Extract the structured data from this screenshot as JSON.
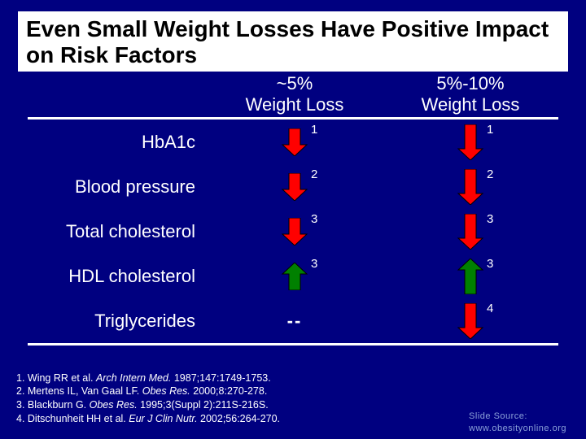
{
  "colors": {
    "background": "#000080",
    "title_bg": "#ffffff",
    "title_text": "#000000",
    "text": "#ffffff",
    "rule": "#ffffff",
    "source_text": "#8aa0d8",
    "arrow_down_fill": "#ff0000",
    "arrow_down_stroke": "#000000",
    "arrow_up_fill": "#008000",
    "arrow_up_stroke": "#000000"
  },
  "title": "Even Small Weight Losses Have Positive Impact on Risk Factors",
  "columns": {
    "col1": {
      "line1": "~5%",
      "line2": "Weight Loss"
    },
    "col2": {
      "line1": "5%-10%",
      "line2": "Weight Loss"
    }
  },
  "rows": [
    {
      "label": "HbA1c",
      "col1": {
        "type": "arrow",
        "direction": "down",
        "length": 34,
        "ref": "1"
      },
      "col2": {
        "type": "arrow",
        "direction": "down",
        "length": 44,
        "ref": "1"
      }
    },
    {
      "label": "Blood pressure",
      "col1": {
        "type": "arrow",
        "direction": "down",
        "length": 34,
        "ref": "2"
      },
      "col2": {
        "type": "arrow",
        "direction": "down",
        "length": 44,
        "ref": "2"
      }
    },
    {
      "label": "Total cholesterol",
      "col1": {
        "type": "arrow",
        "direction": "down",
        "length": 34,
        "ref": "3"
      },
      "col2": {
        "type": "arrow",
        "direction": "down",
        "length": 44,
        "ref": "3"
      }
    },
    {
      "label": "HDL cholesterol",
      "col1": {
        "type": "arrow",
        "direction": "up",
        "length": 34,
        "ref": "3"
      },
      "col2": {
        "type": "arrow",
        "direction": "up",
        "length": 44,
        "ref": "3"
      }
    },
    {
      "label": "Triglycerides",
      "col1": {
        "type": "dash",
        "text": "--"
      },
      "col2": {
        "type": "arrow",
        "direction": "down",
        "length": 44,
        "ref": "4"
      }
    }
  ],
  "references": [
    {
      "num": "1",
      "authors": "Wing RR et al.",
      "journal": "Arch Intern Med.",
      "rest": " 1987;147:1749-1753."
    },
    {
      "num": "2",
      "authors": "Mertens IL, Van Gaal LF.",
      "journal": "Obes Res.",
      "rest": " 2000;8:270-278."
    },
    {
      "num": "3",
      "authors": "Blackburn G.",
      "journal": "Obes Res.",
      "rest": " 1995;3(Suppl 2):211S-216S."
    },
    {
      "num": "4",
      "authors": "Ditschunheit HH et al.",
      "journal": "Eur J Clin Nutr.",
      "rest": " 2002;56:264-270."
    }
  ],
  "source": {
    "line1": "Slide Source:",
    "line2": "www.obesityonline.org"
  },
  "arrow_style": {
    "shaft_width": 14,
    "head_width": 30,
    "head_height": 14,
    "stroke_width": 1
  }
}
